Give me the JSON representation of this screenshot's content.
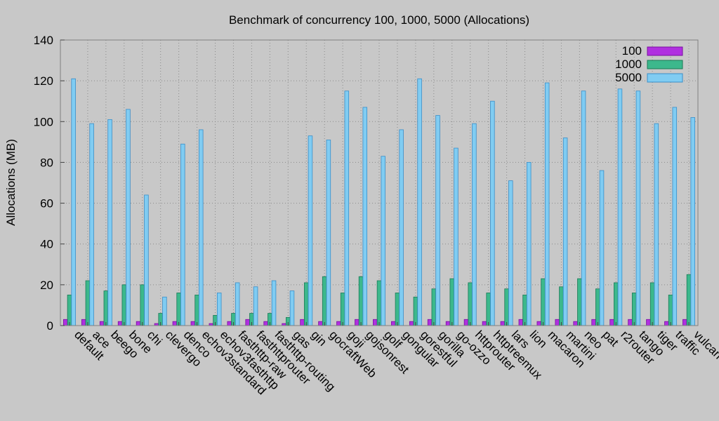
{
  "chart_data": {
    "type": "bar",
    "title": "Benchmark of concurrency 100, 1000, 5000 (Allocations)",
    "xlabel": "",
    "ylabel": "Allocations (MB)",
    "ylim": [
      0,
      140
    ],
    "yticks": [
      0,
      20,
      40,
      60,
      80,
      100,
      120,
      140
    ],
    "grid": true,
    "legend_position": "top-right",
    "categories": [
      "default",
      "ace",
      "beego",
      "bone",
      "chi",
      "clevergo",
      "denco",
      "echov3standard",
      "echov3fasthttp",
      "fasthttp-raw",
      "fasthttprouter",
      "fasthttp-routing",
      "gas",
      "gin",
      "gocraftWeb",
      "goji",
      "gojsonrest",
      "golf",
      "gongular",
      "gorestful",
      "gorilla",
      "go-ozzo",
      "httprouter",
      "httptreemux",
      "lars",
      "lion",
      "macaron",
      "martini",
      "neo",
      "pat",
      "r2router",
      "tango",
      "tiger",
      "traffic",
      "vulcan"
    ],
    "series": [
      {
        "name": "100",
        "color": "#b030e0",
        "edge": "#7a10a0",
        "values": [
          3,
          3,
          2,
          2,
          2,
          1,
          2,
          2,
          1,
          2,
          3,
          2,
          1,
          3,
          2,
          2,
          3,
          3,
          2,
          2,
          3,
          2,
          3,
          2,
          2,
          3,
          2,
          3,
          2,
          3,
          3,
          3,
          3,
          2,
          3
        ]
      },
      {
        "name": "1000",
        "color": "#3cb88c",
        "edge": "#1a7a55",
        "values": [
          15,
          22,
          17,
          20,
          20,
          6,
          16,
          15,
          5,
          6,
          6,
          6,
          4,
          21,
          24,
          16,
          24,
          22,
          16,
          14,
          18,
          23,
          21,
          16,
          18,
          15,
          23,
          19,
          23,
          18,
          21,
          16,
          21,
          15,
          25
        ]
      },
      {
        "name": "5000",
        "color": "#80ccf2",
        "edge": "#3a8ec8",
        "values": [
          121,
          99,
          101,
          106,
          64,
          14,
          89,
          96,
          16,
          21,
          19,
          22,
          17,
          93,
          91,
          115,
          107,
          83,
          96,
          121,
          103,
          87,
          99,
          110,
          71,
          80,
          119,
          92,
          115,
          76,
          116,
          115,
          99,
          107,
          102
        ]
      }
    ]
  }
}
